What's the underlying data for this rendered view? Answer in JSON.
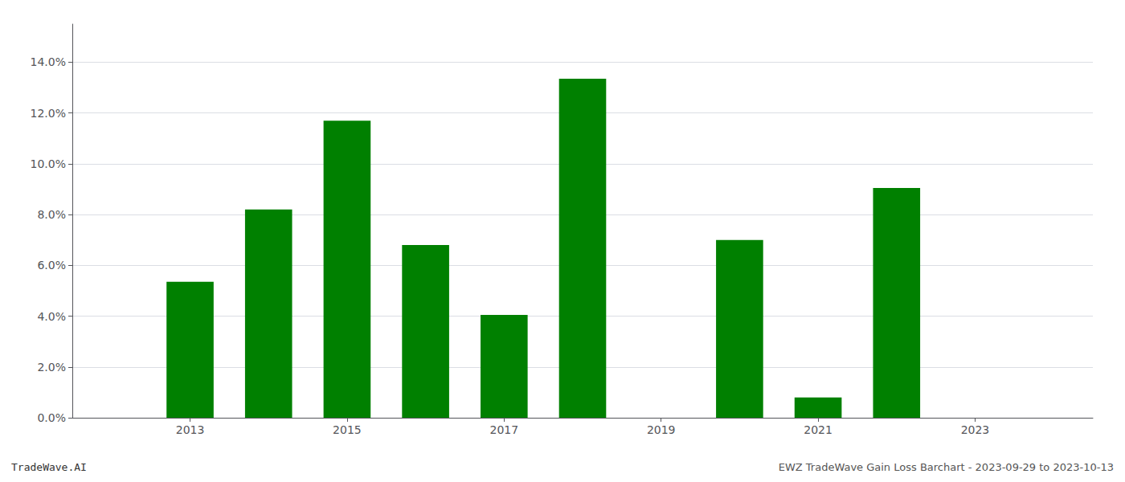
{
  "chart_data": {
    "type": "bar",
    "x": [
      2013,
      2014,
      2015,
      2016,
      2017,
      2018,
      2020,
      2021,
      2022
    ],
    "values": [
      0.0535,
      0.082,
      0.117,
      0.068,
      0.0405,
      0.1335,
      0.07,
      0.008,
      0.0905
    ],
    "color": "#008000",
    "xlim": [
      2011.5,
      2024.5
    ],
    "xticks": [
      2013,
      2015,
      2017,
      2019,
      2021,
      2023
    ],
    "ylim": [
      0,
      0.155
    ],
    "yticks": [
      {
        "value": 0.0,
        "label": "0.0%"
      },
      {
        "value": 0.02,
        "label": "2.0%"
      },
      {
        "value": 0.04,
        "label": "4.0%"
      },
      {
        "value": 0.06,
        "label": "6.0%"
      },
      {
        "value": 0.08,
        "label": "8.0%"
      },
      {
        "value": 0.1,
        "label": "10.0%"
      },
      {
        "value": 0.12,
        "label": "12.0%"
      },
      {
        "value": 0.14,
        "label": "14.0%"
      }
    ],
    "grid": true,
    "annotations": [
      "TradeWave.AI",
      "EWZ TradeWave Gain Loss Barchart - 2023-09-29 to 2023-10-13"
    ]
  }
}
